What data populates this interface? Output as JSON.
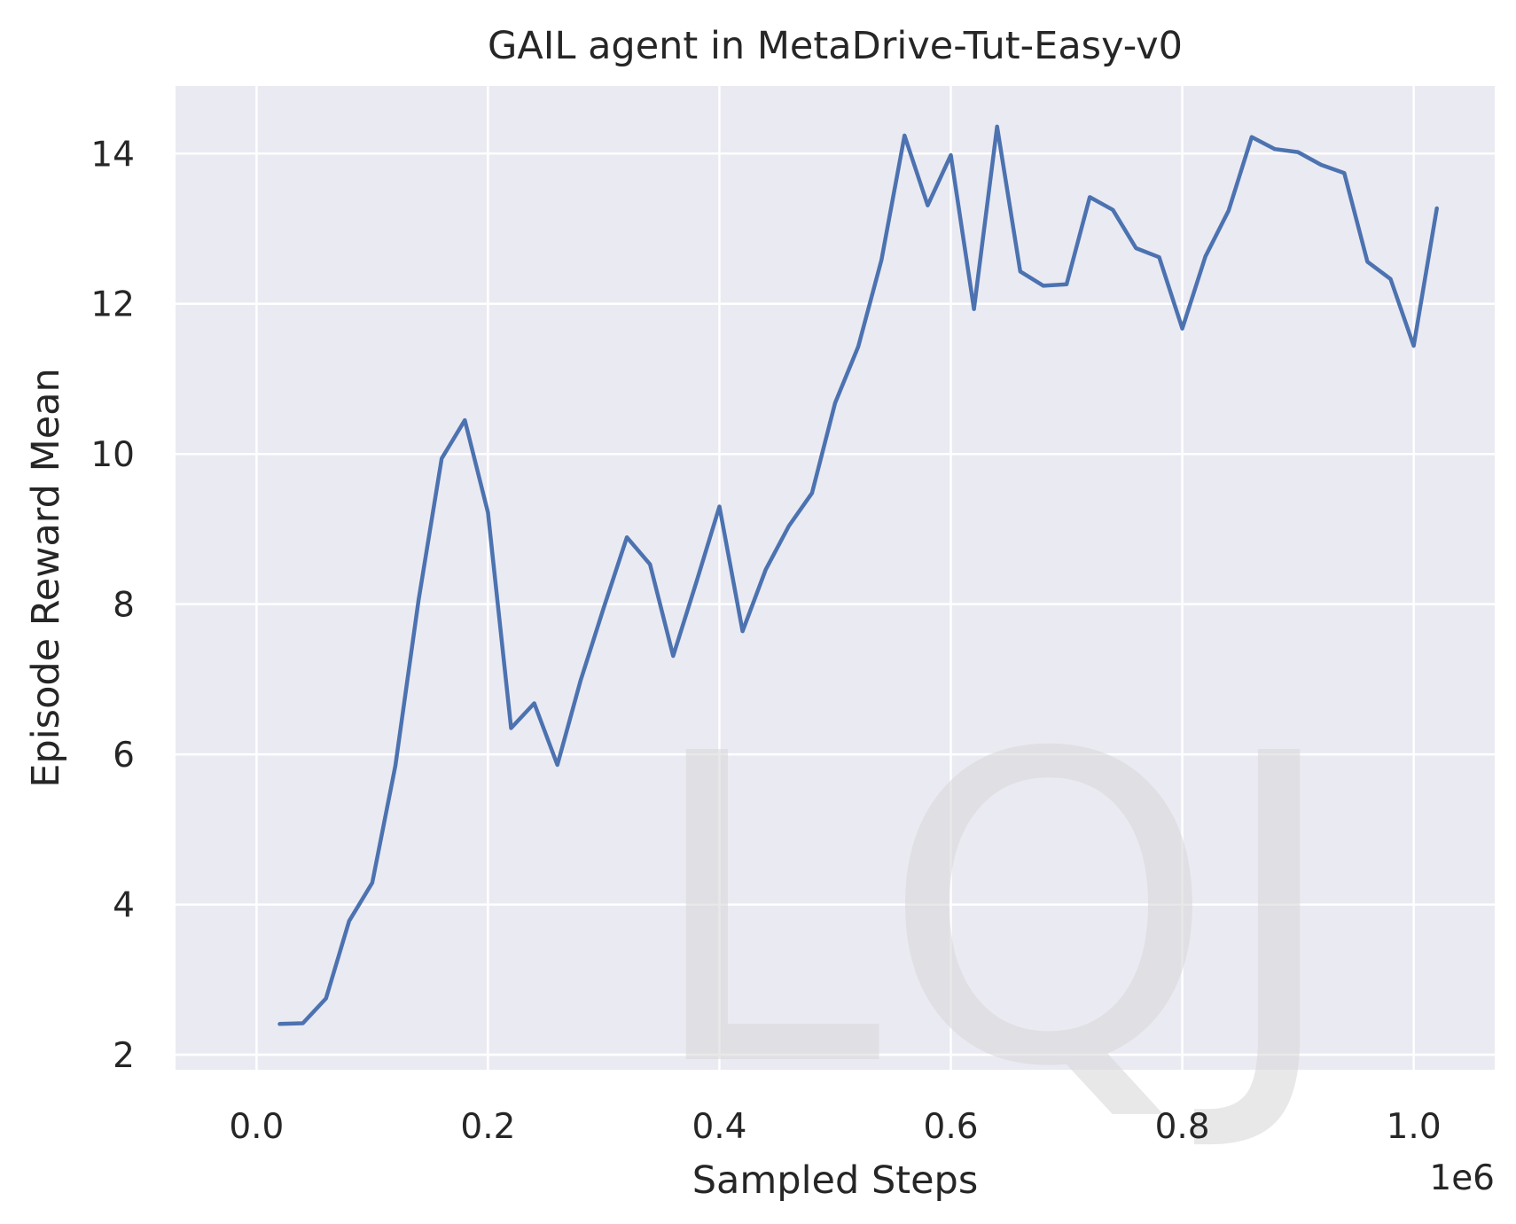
{
  "chart_data": {
    "type": "line",
    "title": "GAIL agent in MetaDrive-Tut-Easy-v0",
    "xlabel": "Sampled Steps",
    "ylabel": "Episode Reward Mean",
    "x_offset_label": "1e6",
    "xlim": [
      -0.07,
      1.07
    ],
    "ylim": [
      1.8,
      14.9
    ],
    "xticks": [
      0.0,
      0.2,
      0.4,
      0.6,
      0.8,
      1.0
    ],
    "xtick_labels": [
      "0.0",
      "0.2",
      "0.4",
      "0.6",
      "0.8",
      "1.0"
    ],
    "yticks": [
      2,
      4,
      6,
      8,
      10,
      12,
      14
    ],
    "ytick_labels": [
      "2",
      "4",
      "6",
      "8",
      "10",
      "12",
      "14"
    ],
    "grid": true,
    "background": "#eaeaf2",
    "grid_color": "#ffffff",
    "line_color": "#4c72b0",
    "series": [
      {
        "x": [
          0.02,
          0.04,
          0.06,
          0.08,
          0.1,
          0.12,
          0.14,
          0.16,
          0.18,
          0.2,
          0.22,
          0.24,
          0.26,
          0.28,
          0.3,
          0.32,
          0.34,
          0.36,
          0.38,
          0.4,
          0.42,
          0.44,
          0.46,
          0.48,
          0.5,
          0.52,
          0.54,
          0.56,
          0.58,
          0.6,
          0.62,
          0.64,
          0.66,
          0.68,
          0.7,
          0.72,
          0.74,
          0.76,
          0.78,
          0.8,
          0.82,
          0.84,
          0.86,
          0.88,
          0.9,
          0.92,
          0.94,
          0.96,
          0.98,
          1.0,
          1.02
        ],
        "values": [
          2.41,
          2.42,
          2.75,
          3.78,
          4.29,
          5.85,
          8.05,
          9.94,
          10.45,
          9.22,
          6.35,
          6.68,
          5.86,
          6.98,
          7.95,
          8.89,
          8.53,
          7.31,
          8.29,
          9.3,
          7.64,
          8.46,
          9.04,
          9.48,
          10.68,
          11.43,
          12.58,
          14.24,
          13.31,
          13.98,
          11.93,
          14.36,
          12.43,
          12.24,
          12.26,
          13.42,
          13.25,
          12.74,
          12.62,
          11.67,
          12.63,
          13.24,
          14.22,
          14.06,
          14.02,
          13.85,
          13.74,
          12.56,
          12.33,
          11.44,
          13.27
        ]
      }
    ]
  },
  "watermark": "LQJ"
}
